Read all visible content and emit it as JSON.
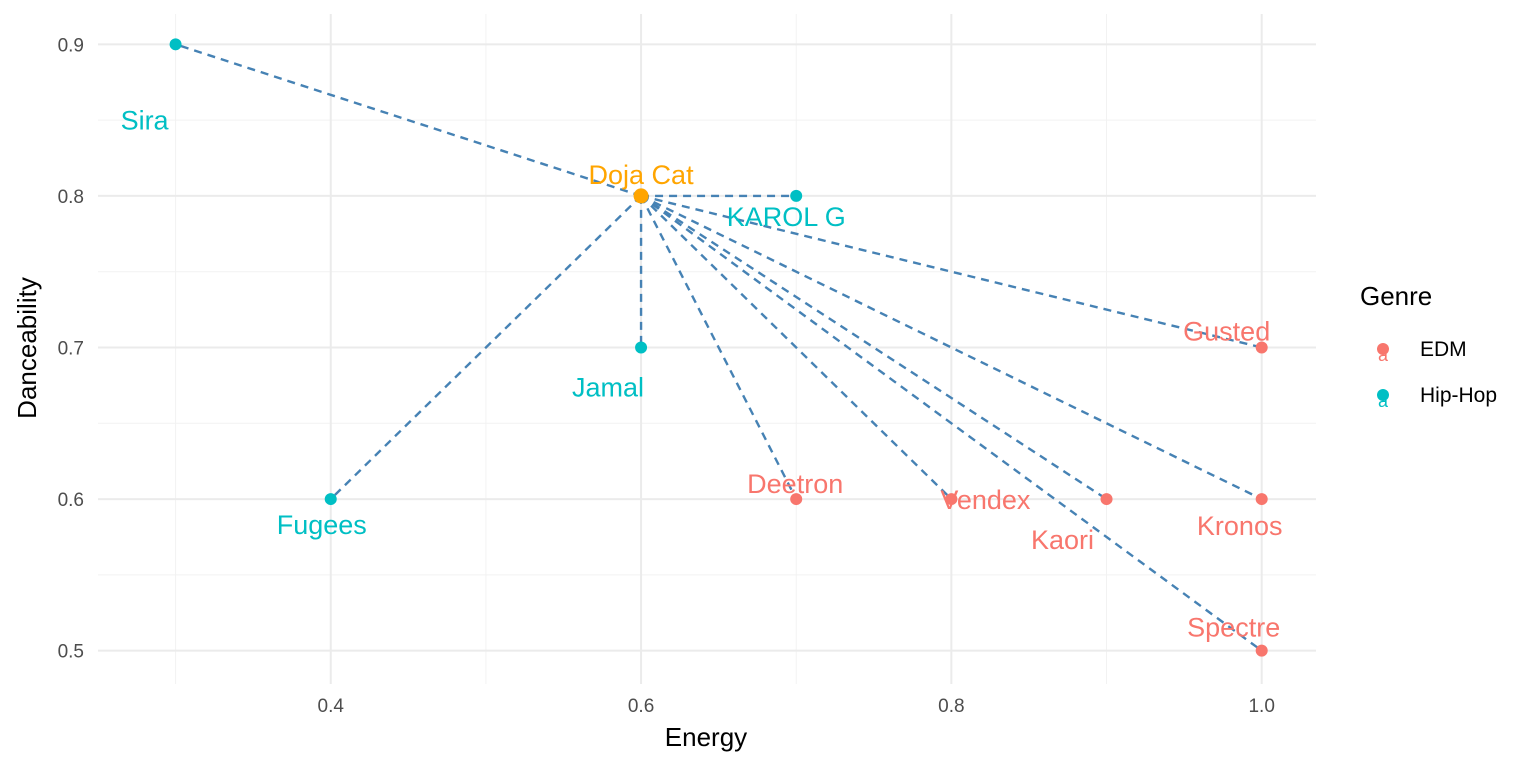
{
  "chart_data": {
    "type": "scatter",
    "title": "",
    "xlabel": "Energy",
    "ylabel": "Danceability",
    "xlim": [
      0.25,
      1.035
    ],
    "ylim": [
      0.478,
      0.92
    ],
    "x_ticks": [
      {
        "value": 0.4,
        "label": "0.4"
      },
      {
        "value": 0.6,
        "label": "0.6"
      },
      {
        "value": 0.8,
        "label": "0.8"
      },
      {
        "value": 1.0,
        "label": "1.0"
      }
    ],
    "x_minor": [
      0.3,
      0.5,
      0.7,
      0.9
    ],
    "y_ticks": [
      {
        "value": 0.5,
        "label": "0.5"
      },
      {
        "value": 0.6,
        "label": "0.6"
      },
      {
        "value": 0.7,
        "label": "0.7"
      },
      {
        "value": 0.8,
        "label": "0.8"
      },
      {
        "value": 0.9,
        "label": "0.9"
      }
    ],
    "y_minor": [
      0.55,
      0.65,
      0.75,
      0.85
    ],
    "grid": true,
    "legend": {
      "title": "Genre",
      "placement": "right",
      "entries": [
        {
          "name": "EDM",
          "color": "#F8766D"
        },
        {
          "name": "Hip-Hop",
          "color": "#00BFC4"
        }
      ]
    },
    "center": {
      "artist": "Doja Cat",
      "energy": 0.6,
      "danceability": 0.8,
      "color": "#FFA500"
    },
    "points": [
      {
        "artist": "Sira",
        "genre": "Hip-Hop",
        "energy": 0.3,
        "danceability": 0.9
      },
      {
        "artist": "KAROL G",
        "genre": "Hip-Hop",
        "energy": 0.7,
        "danceability": 0.8
      },
      {
        "artist": "Jamal",
        "genre": "Hip-Hop",
        "energy": 0.6,
        "danceability": 0.7
      },
      {
        "artist": "Fugees",
        "genre": "Hip-Hop",
        "energy": 0.4,
        "danceability": 0.6
      },
      {
        "artist": "Gusted",
        "genre": "EDM",
        "energy": 1.0,
        "danceability": 0.7
      },
      {
        "artist": "Deetron",
        "genre": "EDM",
        "energy": 0.7,
        "danceability": 0.6
      },
      {
        "artist": "Vendex",
        "genre": "EDM",
        "energy": 0.8,
        "danceability": 0.6
      },
      {
        "artist": "Kaori",
        "genre": "EDM",
        "energy": 0.9,
        "danceability": 0.6
      },
      {
        "artist": "Kronos",
        "genre": "EDM",
        "energy": 1.0,
        "danceability": 0.6
      },
      {
        "artist": "Spectre",
        "genre": "EDM",
        "energy": 1.0,
        "danceability": 0.5
      }
    ],
    "link_color": "#4682B4"
  }
}
